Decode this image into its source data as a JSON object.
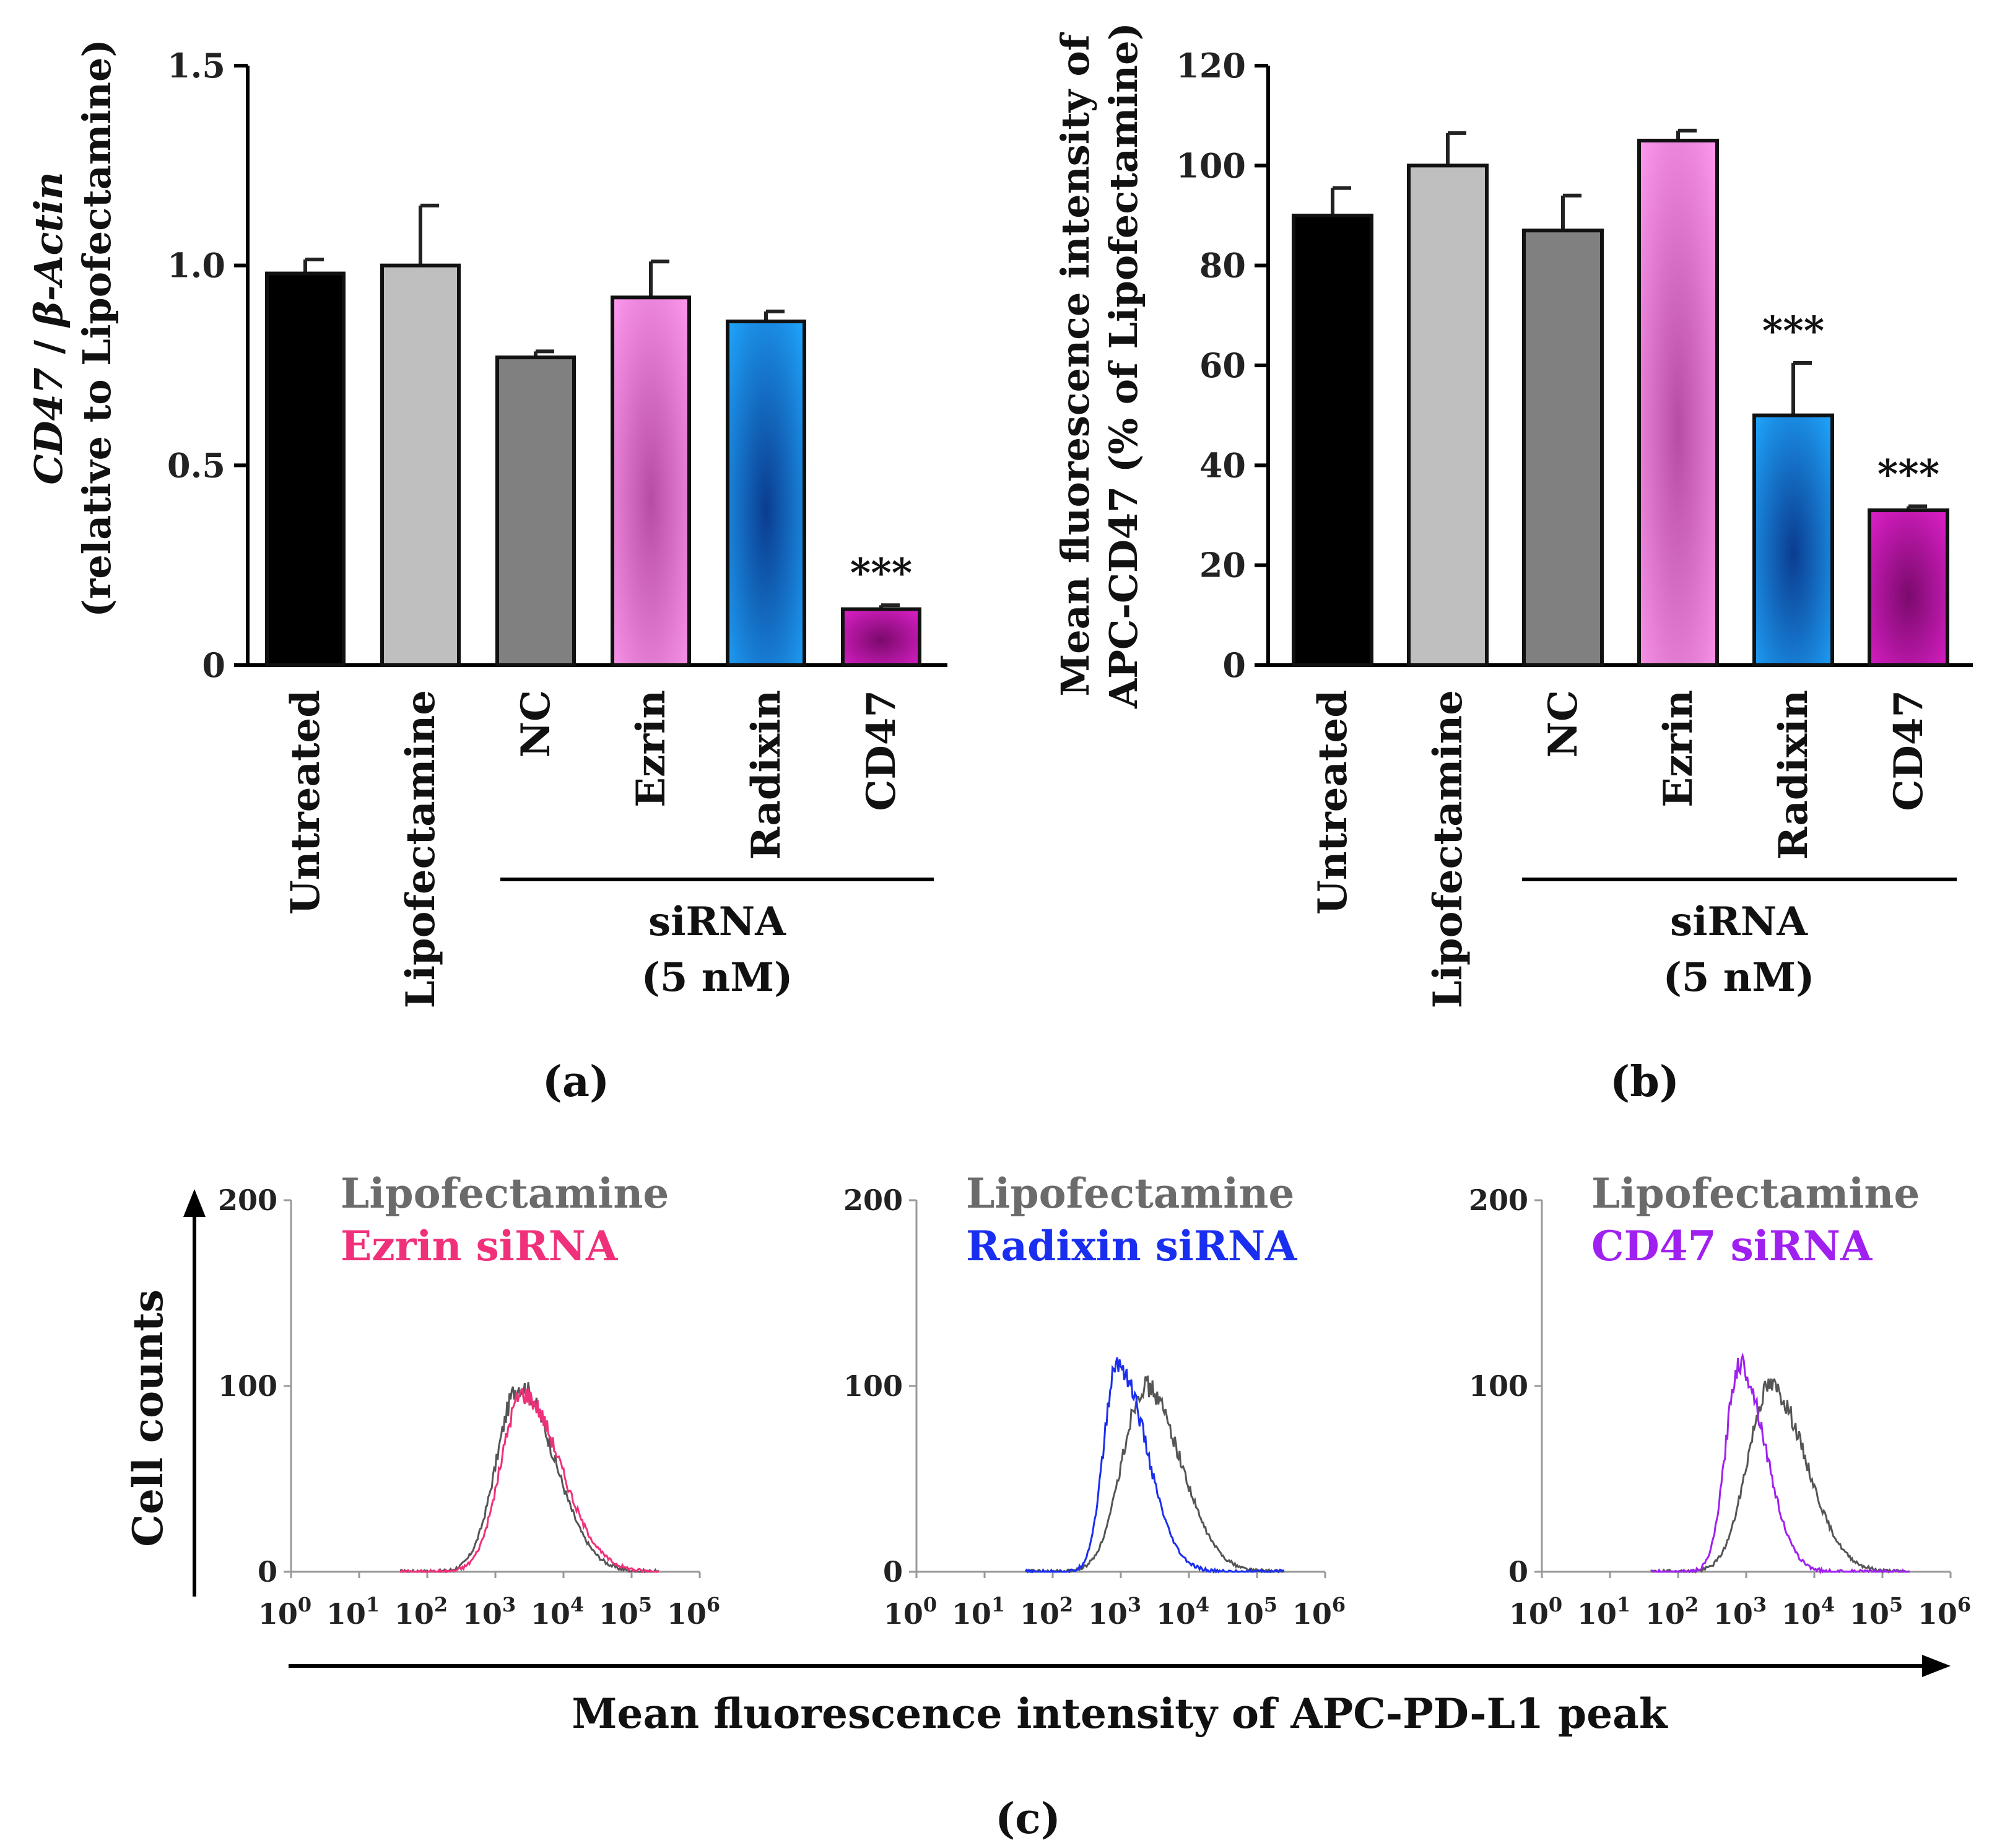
{
  "colors": {
    "untreated": "#000000",
    "lipofectamine": "#bfbfbf",
    "nc": "#808080",
    "ezrin": "#f078e6",
    "radixin": "#1080e0",
    "cd47": "#c814b4",
    "hist_lipofectamine": "#555555",
    "hist_ezrin": "#f0307a",
    "hist_radixin": "#1a2ef0",
    "hist_cd47": "#a020f0"
  },
  "panel_labels": [
    "(a)",
    "(b)",
    "(c)"
  ],
  "chart_data": [
    {
      "id": "a",
      "type": "bar",
      "title": "",
      "ylabel_part1": "CD47",
      "ylabel_sep": " / ",
      "ylabel_part2": "β-Actin",
      "ylabel_line2": "(relative to Lipofectamine)",
      "ylim": [
        0,
        1.5
      ],
      "yticks": [
        "0",
        "0.5",
        "1.0",
        "1.5"
      ],
      "ytick_values": [
        0,
        0.5,
        1.0,
        1.5
      ],
      "categories": [
        "Untreated",
        "Lipofectamine",
        "NC",
        "Ezrin",
        "Radixin",
        "CD47"
      ],
      "values": [
        0.98,
        1.0,
        0.77,
        0.92,
        0.86,
        0.14
      ],
      "errors": [
        0.035,
        0.15,
        0.015,
        0.09,
        0.025,
        0.01
      ],
      "significance": [
        "",
        "",
        "",
        "",
        "",
        "***"
      ],
      "group_label_line1": "siRNA",
      "group_label_line2": "(5 nM)"
    },
    {
      "id": "b",
      "type": "bar",
      "title": "",
      "ylabel_line1": "Mean fluorescence intensity of",
      "ylabel_line2": "APC-CD47 (% of Lipofectamine)",
      "ylim": [
        0,
        120
      ],
      "yticks": [
        "0",
        "20",
        "40",
        "60",
        "80",
        "100",
        "120"
      ],
      "ytick_values": [
        0,
        20,
        40,
        60,
        80,
        100,
        120
      ],
      "categories": [
        "Untreated",
        "Lipofectamine",
        "NC",
        "Ezrin",
        "Radixin",
        "CD47"
      ],
      "values": [
        90,
        100,
        87,
        105,
        50,
        31
      ],
      "errors": [
        5.5,
        6.5,
        7,
        2,
        10.5,
        0.8
      ],
      "significance": [
        "",
        "",
        "",
        "",
        "***",
        "***"
      ],
      "group_label_line1": "siRNA",
      "group_label_line2": "(5 nM)"
    },
    {
      "id": "c",
      "type": "histogram",
      "ylabel": "Cell counts",
      "xlabel": "Mean fluorescence intensity of APC-PD-L1 peak",
      "yticks": [
        "0",
        "100",
        "200"
      ],
      "ytick_values": [
        0,
        100,
        200
      ],
      "xtick_exponents": [
        "0",
        "1",
        "2",
        "3",
        "4",
        "5",
        "6"
      ],
      "xtick_base": "10",
      "xlim_log10": [
        0,
        6
      ],
      "ylim": [
        0,
        200
      ],
      "plots": [
        {
          "control_label": "Lipofectamine",
          "treated_label": "Ezrin siRNA",
          "control": {
            "peak_log10": 3.35,
            "height": 100,
            "width_left": 0.33,
            "width_right": 0.52
          },
          "treated": {
            "peak_log10": 3.4,
            "height": 96,
            "width_left": 0.32,
            "width_right": 0.55
          }
        },
        {
          "control_label": "Lipofectamine",
          "treated_label": "Radixin siRNA",
          "control": {
            "peak_log10": 3.35,
            "height": 100,
            "width_left": 0.33,
            "width_right": 0.52
          },
          "treated": {
            "peak_log10": 2.95,
            "height": 112,
            "width_left": 0.2,
            "width_right": 0.42
          }
        },
        {
          "control_label": "Lipofectamine",
          "treated_label": "CD47 siRNA",
          "control": {
            "peak_log10": 3.35,
            "height": 100,
            "width_left": 0.33,
            "width_right": 0.52
          },
          "treated": {
            "peak_log10": 2.9,
            "height": 112,
            "width_left": 0.2,
            "width_right": 0.38
          }
        }
      ]
    }
  ]
}
